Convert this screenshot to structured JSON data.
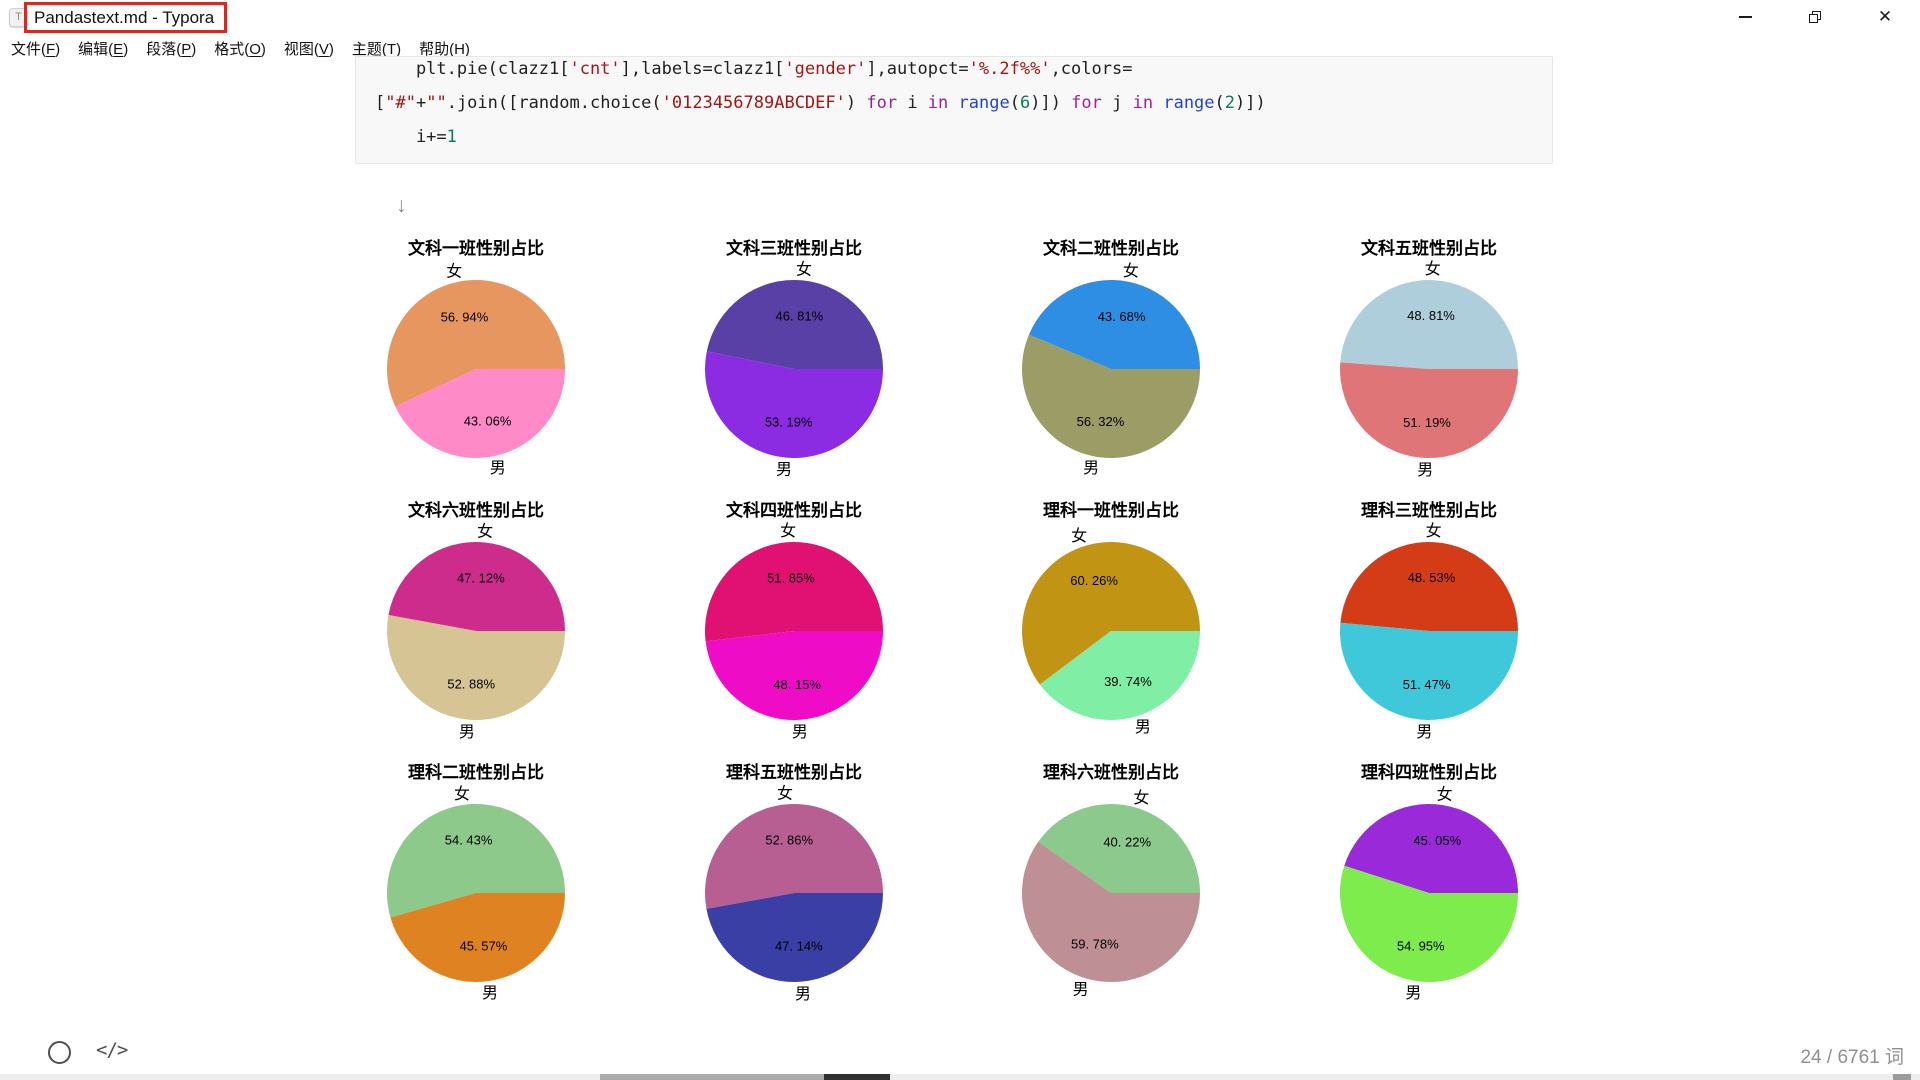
{
  "window": {
    "title": "Pandastext.md - Typora",
    "app_icon_letter": "T",
    "annotation_color": "#E1251B",
    "close_glyph": "✕"
  },
  "menu": {
    "items": [
      {
        "pre": "文件(",
        "key": "F",
        "post": ")"
      },
      {
        "pre": "编辑(",
        "key": "E",
        "post": ")"
      },
      {
        "pre": "段落(",
        "key": "P",
        "post": ")"
      },
      {
        "pre": "格式(",
        "key": "O",
        "post": ")"
      },
      {
        "pre": "视图(",
        "key": "V",
        "post": ")"
      },
      {
        "pre": "主题(",
        "key": "T",
        "post": ")"
      },
      {
        "pre": "帮助(",
        "key": "H",
        "post": ")"
      }
    ]
  },
  "code_block": {
    "syntax_colors": {
      "plain": "#202020",
      "string": "#A31515",
      "keyword": "#9B2393",
      "builtin": "#2544C8",
      "number": "#0B7A5A"
    },
    "lines": [
      {
        "segments": [
          {
            "t": "    plt.pie(clazz1[",
            "c": "p"
          },
          {
            "t": "'cnt'",
            "c": "s"
          },
          {
            "t": "],labels=clazz1[",
            "c": "p"
          },
          {
            "t": "'gender'",
            "c": "s"
          },
          {
            "t": "],autopct=",
            "c": "p"
          },
          {
            "t": "'%.2f%%'",
            "c": "s"
          },
          {
            "t": ",colors=",
            "c": "p"
          }
        ]
      },
      {
        "segments": [
          {
            "t": "[",
            "c": "p"
          },
          {
            "t": "\"#\"",
            "c": "s"
          },
          {
            "t": "+",
            "c": "p"
          },
          {
            "t": "\"\"",
            "c": "s"
          },
          {
            "t": ".join([random.choice(",
            "c": "p"
          },
          {
            "t": "'0123456789ABCDEF'",
            "c": "s"
          },
          {
            "t": ") ",
            "c": "p"
          },
          {
            "t": "for",
            "c": "k"
          },
          {
            "t": " i ",
            "c": "p"
          },
          {
            "t": "in",
            "c": "k"
          },
          {
            "t": " ",
            "c": "p"
          },
          {
            "t": "range",
            "c": "b"
          },
          {
            "t": "(",
            "c": "p"
          },
          {
            "t": "6",
            "c": "n"
          },
          {
            "t": ")]) ",
            "c": "p"
          },
          {
            "t": "for",
            "c": "k"
          },
          {
            "t": " j ",
            "c": "p"
          },
          {
            "t": "in",
            "c": "k"
          },
          {
            "t": " ",
            "c": "p"
          },
          {
            "t": "range",
            "c": "b"
          },
          {
            "t": "(",
            "c": "p"
          },
          {
            "t": "2",
            "c": "n"
          },
          {
            "t": ")])",
            "c": "p"
          }
        ]
      },
      {
        "segments": [
          {
            "t": "    i+=",
            "c": "p"
          },
          {
            "t": "1",
            "c": "n"
          }
        ]
      }
    ]
  },
  "editor": {
    "cursor_hint": "↓"
  },
  "chart_data": [
    {
      "type": "pie",
      "title": "文科一班性别占比",
      "categories": [
        "女",
        "男"
      ],
      "values": [
        56.94,
        43.06
      ],
      "autopct_labels": [
        "56. 94%",
        "43. 06%"
      ],
      "colors": [
        "#E6965E",
        "#FF8AC8"
      ]
    },
    {
      "type": "pie",
      "title": "文科三班性别占比",
      "categories": [
        "女",
        "男"
      ],
      "values": [
        46.81,
        53.19
      ],
      "autopct_labels": [
        "46. 81%",
        "53. 19%"
      ],
      "colors": [
        "#5940A6",
        "#8B2BE2"
      ]
    },
    {
      "type": "pie",
      "title": "文科二班性别占比",
      "categories": [
        "女",
        "男"
      ],
      "values": [
        43.68,
        56.32
      ],
      "autopct_labels": [
        "43. 68%",
        "56. 32%"
      ],
      "colors": [
        "#2D8EE4",
        "#9C9C66"
      ]
    },
    {
      "type": "pie",
      "title": "文科五班性别占比",
      "categories": [
        "女",
        "男"
      ],
      "values": [
        48.81,
        51.19
      ],
      "autopct_labels": [
        "48. 81%",
        "51. 19%"
      ],
      "colors": [
        "#AFCEDC",
        "#E07577"
      ]
    },
    {
      "type": "pie",
      "title": "文科六班性别占比",
      "categories": [
        "女",
        "男"
      ],
      "values": [
        47.12,
        52.88
      ],
      "autopct_labels": [
        "47. 12%",
        "52. 88%"
      ],
      "colors": [
        "#CE2C8C",
        "#D7C495"
      ]
    },
    {
      "type": "pie",
      "title": "文科四班性别占比",
      "categories": [
        "女",
        "男"
      ],
      "values": [
        51.85,
        48.15
      ],
      "autopct_labels": [
        "51. 85%",
        "48. 15%"
      ],
      "colors": [
        "#E01173",
        "#EF0CC7"
      ]
    },
    {
      "type": "pie",
      "title": "理科一班性别占比",
      "categories": [
        "女",
        "男"
      ],
      "values": [
        60.26,
        39.74
      ],
      "autopct_labels": [
        "60. 26%",
        "39. 74%"
      ],
      "colors": [
        "#C29414",
        "#80EEA5"
      ]
    },
    {
      "type": "pie",
      "title": "理科三班性别占比",
      "categories": [
        "女",
        "男"
      ],
      "values": [
        48.53,
        51.47
      ],
      "autopct_labels": [
        "48. 53%",
        "51. 47%"
      ],
      "colors": [
        "#D43C17",
        "#3FC8DA"
      ]
    },
    {
      "type": "pie",
      "title": "理科二班性别占比",
      "categories": [
        "女",
        "男"
      ],
      "values": [
        54.43,
        45.57
      ],
      "autopct_labels": [
        "54. 43%",
        "45. 57%"
      ],
      "colors": [
        "#8CC98B",
        "#DE8222"
      ]
    },
    {
      "type": "pie",
      "title": "理科五班性别占比",
      "categories": [
        "女",
        "男"
      ],
      "values": [
        52.86,
        47.14
      ],
      "autopct_labels": [
        "52. 86%",
        "47. 14%"
      ],
      "colors": [
        "#B75F93",
        "#3A3FA5"
      ]
    },
    {
      "type": "pie",
      "title": "理科六班性别占比",
      "categories": [
        "女",
        "男"
      ],
      "values": [
        40.22,
        59.78
      ],
      "autopct_labels": [
        "40. 22%",
        "59. 78%"
      ],
      "colors": [
        "#8BCA8C",
        "#BF8F96"
      ]
    },
    {
      "type": "pie",
      "title": "理科四班性别占比",
      "categories": [
        "女",
        "男"
      ],
      "values": [
        45.05,
        54.95
      ],
      "autopct_labels": [
        "45. 05%",
        "54. 95%"
      ],
      "colors": [
        "#9929D9",
        "#7DEC4C"
      ]
    }
  ],
  "status_bar": {
    "word_count": "24 / 6761 词",
    "source_mode_icon": "</>"
  }
}
